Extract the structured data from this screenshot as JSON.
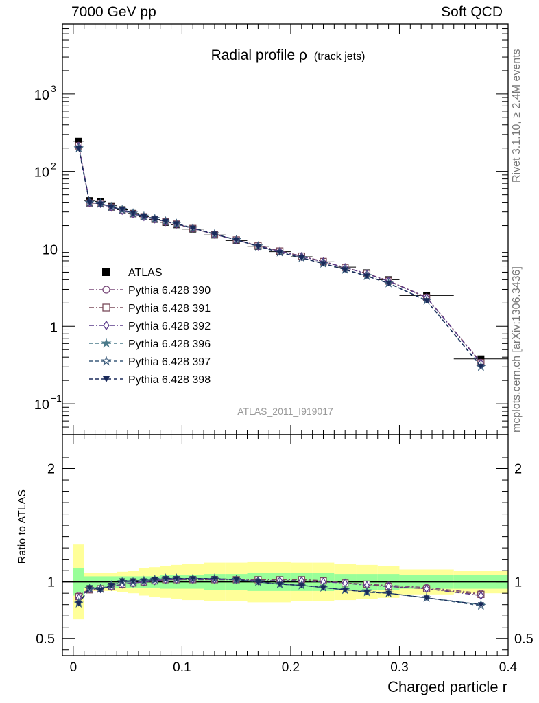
{
  "header": {
    "left": "7000 GeV pp",
    "right": "Soft QCD"
  },
  "side_labels": {
    "rivet": "Rivet 3.1.10, ≥ 2.4M events",
    "mcplots": "mcplots.cern.ch [arXiv:1306.3436]"
  },
  "chart_data": {
    "type": "line",
    "title_main": "Radial profile ρ",
    "title_sub": "(track jets)",
    "watermark": "ATLAS_2011_I919017",
    "xlabel": "Charged particle r",
    "ylabel_ratio": "Ratio to ATLAS",
    "xlim": [
      -0.01,
      0.4
    ],
    "ylim_main": [
      0.04,
      8000
    ],
    "ylim_ratio": [
      0.35,
      2.3
    ],
    "y_scale_main": "log",
    "x_ticks": [
      "0",
      "0.1",
      "0.2",
      "0.3",
      "0.4"
    ],
    "y_ticks_main": [
      {
        "v": 0.1,
        "b": "10",
        "e": "−1"
      },
      {
        "v": 1,
        "b": "1",
        "e": ""
      },
      {
        "v": 10,
        "b": "10",
        "e": ""
      },
      {
        "v": 100,
        "b": "10",
        "e": "2"
      },
      {
        "v": 1000,
        "b": "10",
        "e": "3"
      }
    ],
    "y_ticks_ratio": [
      "0.5",
      "1",
      "2"
    ],
    "legend_position": "left-middle",
    "x": [
      0.005,
      0.015,
      0.025,
      0.035,
      0.045,
      0.055,
      0.065,
      0.075,
      0.085,
      0.095,
      0.11,
      0.13,
      0.15,
      0.17,
      0.19,
      0.21,
      0.23,
      0.25,
      0.27,
      0.29,
      0.325,
      0.375
    ],
    "x_err": [
      0.005,
      0.005,
      0.005,
      0.005,
      0.005,
      0.005,
      0.005,
      0.005,
      0.005,
      0.005,
      0.01,
      0.01,
      0.01,
      0.01,
      0.01,
      0.01,
      0.01,
      0.01,
      0.01,
      0.01,
      0.025,
      0.025
    ],
    "data": {
      "name": "ATLAS",
      "color": "#000000",
      "values": [
        245,
        42,
        41,
        36,
        32,
        28.7,
        26,
        24,
        22,
        20.5,
        18,
        15.1,
        12.8,
        10.8,
        9.2,
        7.9,
        6.8,
        5.8,
        4.9,
        4.0,
        2.5,
        0.38
      ],
      "band_inner": [
        0.12,
        0.05,
        0.05,
        0.05,
        0.05,
        0.05,
        0.05,
        0.05,
        0.06,
        0.06,
        0.06,
        0.07,
        0.07,
        0.08,
        0.08,
        0.08,
        0.08,
        0.07,
        0.07,
        0.07,
        0.06,
        0.06
      ],
      "band_outer": [
        0.33,
        0.08,
        0.08,
        0.08,
        0.09,
        0.1,
        0.12,
        0.13,
        0.14,
        0.15,
        0.16,
        0.17,
        0.17,
        0.18,
        0.18,
        0.17,
        0.17,
        0.16,
        0.15,
        0.14,
        0.11,
        0.1
      ]
    },
    "series": [
      {
        "name": "Pythia 6.428 390",
        "color": "#7a4a7a",
        "marker": "circle",
        "dash": "7,3,2,3",
        "ratio": [
          0.88,
          0.94,
          0.94,
          0.96,
          0.98,
          0.99,
          1.0,
          1.01,
          1.02,
          1.02,
          1.02,
          1.02,
          1.02,
          1.02,
          1.02,
          1.02,
          1.01,
          0.99,
          0.98,
          0.97,
          0.95,
          0.9
        ]
      },
      {
        "name": "Pythia 6.428 391",
        "color": "#7a4a5a",
        "marker": "square",
        "dash": "7,3,2,3",
        "ratio": [
          0.87,
          0.93,
          0.94,
          0.96,
          0.98,
          0.99,
          1.0,
          1.01,
          1.02,
          1.02,
          1.02,
          1.02,
          1.02,
          1.02,
          1.02,
          1.02,
          1.01,
          0.99,
          0.98,
          0.96,
          0.94,
          0.89
        ]
      },
      {
        "name": "Pythia 6.428 392",
        "color": "#5a3a8a",
        "marker": "diamond",
        "dash": "7,3,2,3",
        "ratio": [
          0.86,
          0.94,
          0.94,
          0.96,
          0.98,
          0.99,
          1.0,
          1.01,
          1.02,
          1.02,
          1.02,
          1.02,
          1.02,
          1.01,
          1.01,
          1.01,
          1.0,
          0.99,
          0.97,
          0.96,
          0.94,
          0.88
        ]
      },
      {
        "name": "Pythia 6.428 396",
        "color": "#4a7a8a",
        "marker": "star-filled",
        "dash": "5,4",
        "ratio": [
          0.82,
          0.94,
          0.94,
          0.97,
          1.0,
          1.0,
          1.01,
          1.02,
          1.03,
          1.03,
          1.03,
          1.03,
          1.02,
          1.0,
          0.98,
          0.97,
          0.95,
          0.93,
          0.92,
          0.9,
          0.86,
          0.8
        ]
      },
      {
        "name": "Pythia 6.428 397",
        "color": "#3a5a7a",
        "marker": "star-open",
        "dash": "5,4",
        "ratio": [
          0.81,
          0.94,
          0.94,
          0.97,
          1.0,
          1.0,
          1.01,
          1.02,
          1.03,
          1.03,
          1.03,
          1.03,
          1.02,
          1.0,
          0.98,
          0.97,
          0.95,
          0.93,
          0.91,
          0.9,
          0.86,
          0.79
        ]
      },
      {
        "name": "Pythia 6.428 398",
        "color": "#1a2a5a",
        "marker": "triangle-down",
        "dash": "5,4",
        "ratio": [
          0.81,
          0.95,
          0.93,
          0.97,
          1.01,
          1.01,
          1.01,
          1.02,
          1.03,
          1.03,
          1.03,
          1.03,
          1.02,
          1.0,
          0.98,
          0.97,
          0.95,
          0.93,
          0.91,
          0.9,
          0.86,
          0.8
        ]
      }
    ]
  }
}
